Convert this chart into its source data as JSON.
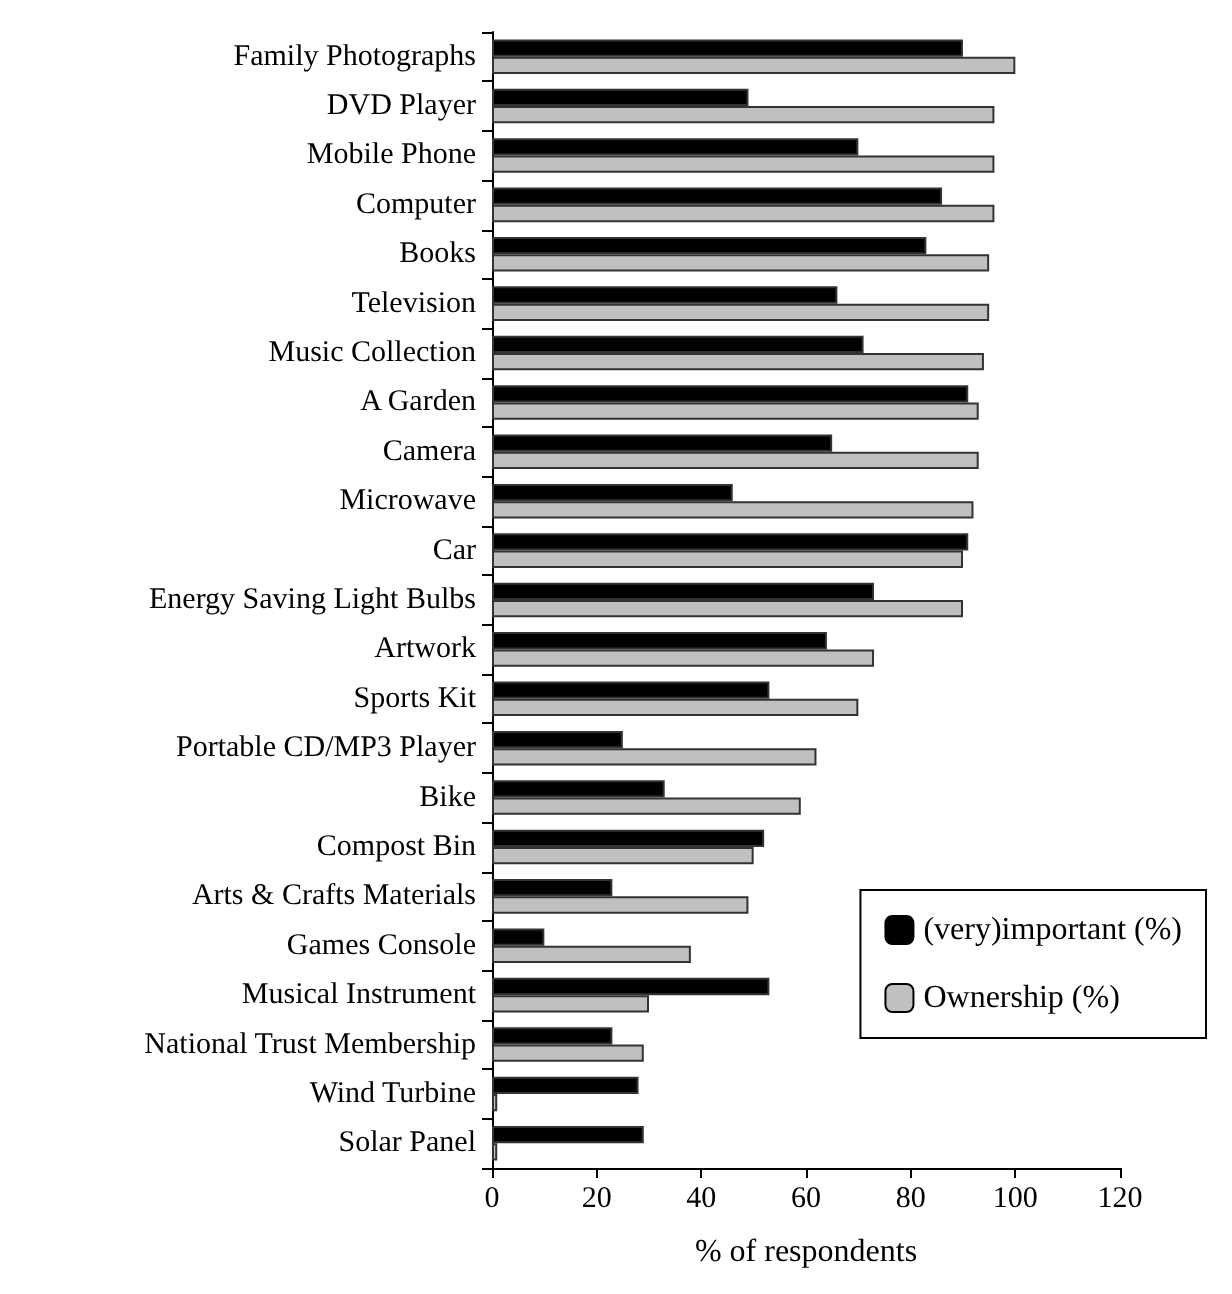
{
  "chart_data": {
    "type": "bar",
    "orientation": "horizontal",
    "xlabel": "% of respondents",
    "categories": [
      "Family Photographs",
      "DVD Player",
      "Mobile Phone",
      "Computer",
      "Books",
      "Television",
      "Music Collection",
      "A Garden",
      "Camera",
      "Microwave",
      "Car",
      "Energy Saving Light Bulbs",
      "Artwork",
      "Sports Kit",
      "Portable CD/MP3 Player",
      "Bike",
      "Compost Bin",
      "Arts & Crafts Materials",
      "Games Console",
      "Musical Instrument",
      "National Trust Membership",
      "Wind Turbine",
      "Solar Panel"
    ],
    "series": [
      {
        "name": "(very)important (%)",
        "color": "#000000",
        "values": [
          90,
          49,
          70,
          86,
          83,
          66,
          71,
          91,
          65,
          46,
          91,
          73,
          64,
          53,
          25,
          33,
          52,
          23,
          10,
          53,
          23,
          28,
          29
        ]
      },
      {
        "name": "Ownership (%)",
        "color": "#c0c0c0",
        "values": [
          100,
          96,
          96,
          96,
          95,
          95,
          94,
          93,
          93,
          92,
          90,
          90,
          73,
          70,
          62,
          59,
          50,
          49,
          38,
          30,
          29,
          1,
          1
        ]
      }
    ],
    "xlim": [
      0,
      120
    ],
    "xticks": [
      0,
      20,
      40,
      60,
      80,
      100,
      120
    ],
    "grid": false,
    "legend": "bottom right"
  }
}
